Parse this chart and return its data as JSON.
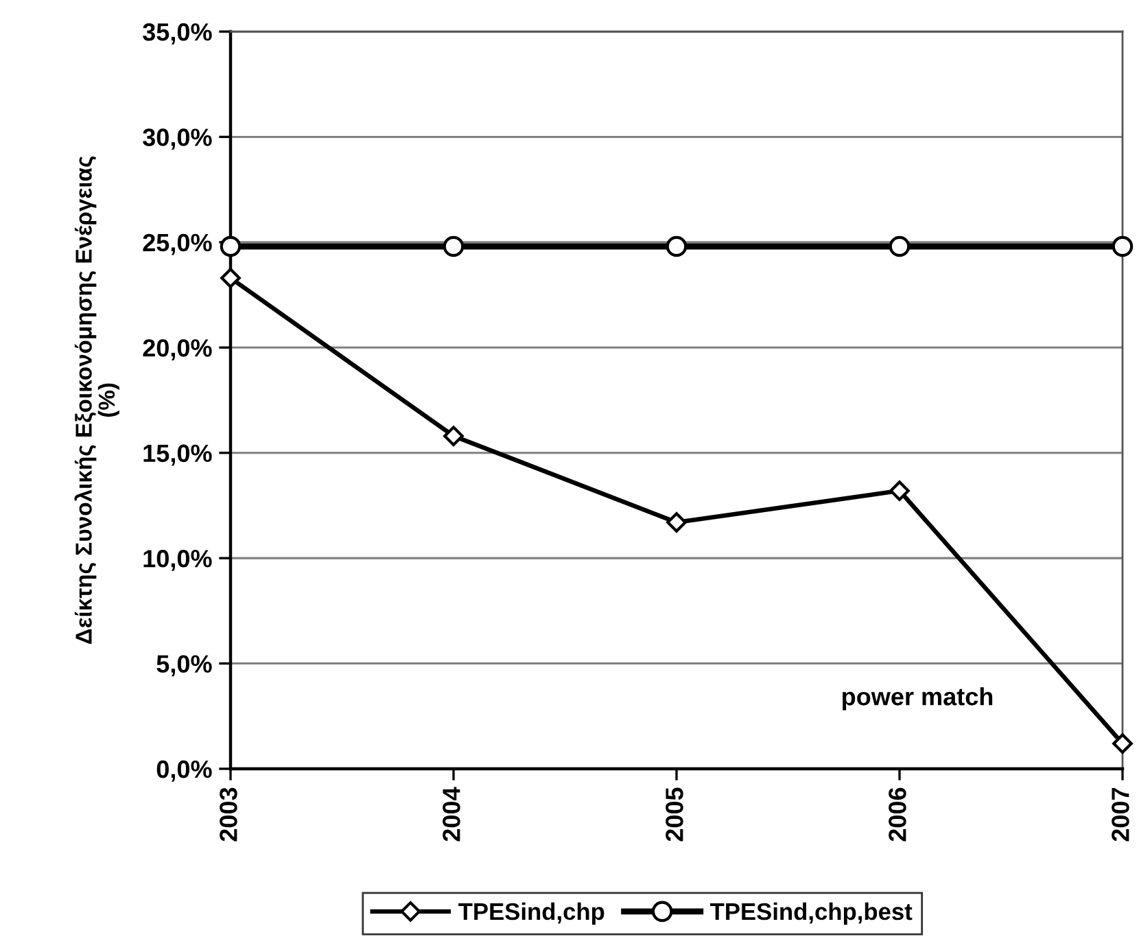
{
  "chart_data": {
    "type": "line",
    "ylabel": "Δείκτης Συνολικής Εξοικονόμησης Ενέργειας\n(%)",
    "categories": [
      "2003",
      "2004",
      "2005",
      "2006",
      "2007"
    ],
    "series": [
      {
        "name": "TPESind,chp",
        "color": "#000000",
        "marker": "diamond",
        "values": [
          23.3,
          15.8,
          11.7,
          13.2,
          1.2
        ]
      },
      {
        "name": "TPESind,chp,best",
        "color": "#000000",
        "marker": "circle",
        "values": [
          24.8,
          24.8,
          24.8,
          24.8,
          24.8
        ]
      }
    ],
    "ylim": [
      0,
      35
    ],
    "yticks": [
      {
        "value": 0,
        "label": "0,0%"
      },
      {
        "value": 5,
        "label": "5,0%"
      },
      {
        "value": 10,
        "label": "10,0%"
      },
      {
        "value": 15,
        "label": "15,0%"
      },
      {
        "value": 20,
        "label": "20,0%"
      },
      {
        "value": 25,
        "label": "25,0%"
      },
      {
        "value": 30,
        "label": "30,0%"
      },
      {
        "value": 35,
        "label": "35,0%"
      }
    ],
    "annotations": [
      "power match"
    ],
    "grid": "y",
    "legend": "bottom",
    "line_style": "solid"
  }
}
